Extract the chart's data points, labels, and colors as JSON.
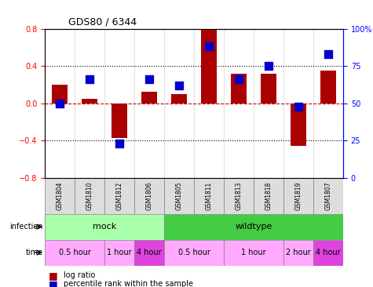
{
  "title": "GDS80 / 6344",
  "samples": [
    "GSM1804",
    "GSM1810",
    "GSM1812",
    "GSM1806",
    "GSM1805",
    "GSM1811",
    "GSM1813",
    "GSM1818",
    "GSM1819",
    "GSM1807"
  ],
  "log_ratio": [
    0.2,
    0.05,
    -0.37,
    0.12,
    0.1,
    0.79,
    0.32,
    0.32,
    -0.46,
    0.35
  ],
  "percentile": [
    50,
    66,
    23,
    66,
    62,
    88,
    66,
    75,
    48,
    83
  ],
  "ylim_left": [
    -0.8,
    0.8
  ],
  "ylim_right": [
    0,
    100
  ],
  "yticks_left": [
    -0.8,
    -0.4,
    0.0,
    0.4,
    0.8
  ],
  "yticks_right": [
    0,
    25,
    50,
    75,
    100
  ],
  "bar_color": "#aa0000",
  "dot_color": "#0000cc",
  "hline_color": "#cc0000",
  "dotline_color": "black",
  "infection_groups": [
    {
      "label": "mock",
      "start": 0,
      "end": 4,
      "color": "#aaffaa"
    },
    {
      "label": "wildtype",
      "start": 4,
      "end": 10,
      "color": "#44cc44"
    }
  ],
  "time_groups": [
    {
      "label": "0.5 hour",
      "start": 0,
      "end": 2,
      "color": "#ffaaff"
    },
    {
      "label": "1 hour",
      "start": 2,
      "end": 3,
      "color": "#ffaaff"
    },
    {
      "label": "4 hour",
      "start": 3,
      "end": 4,
      "color": "#dd44dd"
    },
    {
      "label": "0.5 hour",
      "start": 4,
      "end": 6,
      "color": "#ffaaff"
    },
    {
      "label": "1 hour",
      "start": 6,
      "end": 8,
      "color": "#ffaaff"
    },
    {
      "label": "2 hour",
      "start": 8,
      "end": 9,
      "color": "#ffaaff"
    },
    {
      "label": "4 hour",
      "start": 9,
      "end": 10,
      "color": "#dd44dd"
    }
  ],
  "legend_items": [
    {
      "label": "log ratio",
      "color": "#aa0000",
      "marker": "s"
    },
    {
      "label": "percentile rank within the sample",
      "color": "#0000cc",
      "marker": "s"
    }
  ]
}
